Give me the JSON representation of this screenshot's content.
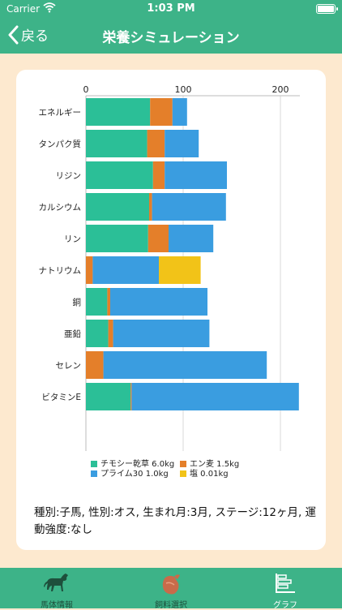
{
  "status_bar": {
    "carrier": "Carrier",
    "time": "1:03 PM"
  },
  "nav": {
    "back_label": "戻る",
    "title": "栄養シミュレーション"
  },
  "chart_data": {
    "type": "bar",
    "orientation": "horizontal",
    "stacked": true,
    "categories": [
      "エネルギー",
      "タンパク質",
      "リジン",
      "カルシウム",
      "リン",
      "ナトリウム",
      "銅",
      "亜鉛",
      "セレン",
      "ビタミンE"
    ],
    "xlim": [
      0,
      220
    ],
    "x_ticks": [
      0,
      100,
      200
    ],
    "grid": true,
    "legend_position": "bottom",
    "series": [
      {
        "name": "チモシー乾草 6.0kg",
        "color": "#2bbf97",
        "values": [
          66,
          63,
          69,
          65,
          64,
          0,
          22,
          23,
          0,
          46
        ]
      },
      {
        "name": "エン麦 1.5kg",
        "color": "#e47f2a",
        "values": [
          23,
          18,
          12,
          3,
          21,
          7,
          3,
          5,
          18,
          1
        ]
      },
      {
        "name": "プライム30 1.0kg",
        "color": "#3a9de0",
        "values": [
          15,
          35,
          64,
          76,
          46,
          68,
          100,
          99,
          168,
          172
        ]
      },
      {
        "name": "塩 0.01kg",
        "color": "#f2c318",
        "values": [
          0,
          0,
          0,
          0,
          0,
          43,
          0,
          0,
          0,
          0
        ]
      }
    ]
  },
  "info_text": "種別:子馬, 性別:オス, 生まれ月:3月, ステージ:12ヶ月, 運動強度:なし",
  "tabs": [
    {
      "label": "馬体情報",
      "icon": "horse-icon",
      "active": false
    },
    {
      "label": "飼料選択",
      "icon": "feed-bag-icon",
      "active": false
    },
    {
      "label": "グラフ",
      "icon": "bar-chart-icon",
      "active": true
    }
  ]
}
